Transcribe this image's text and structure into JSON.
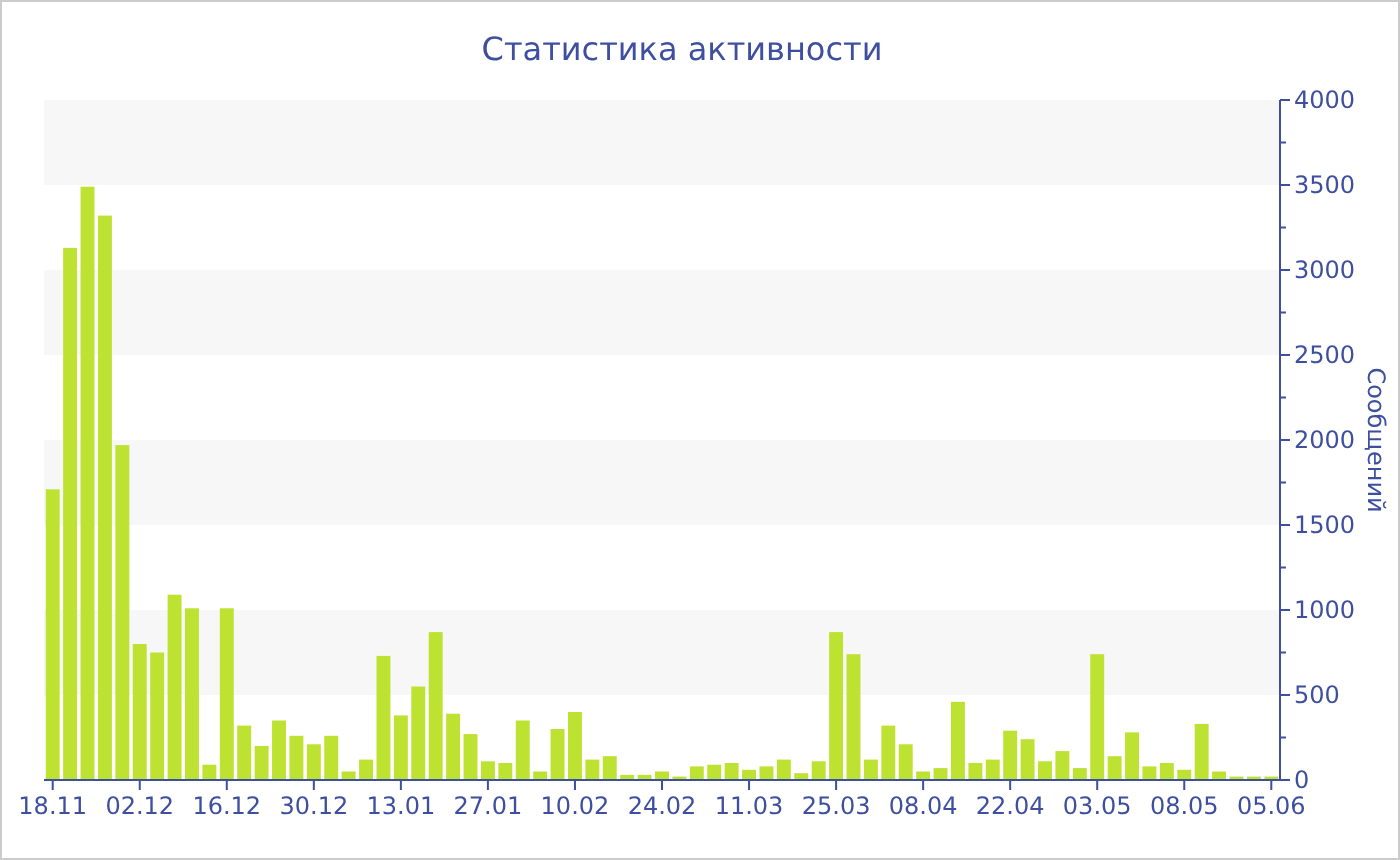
{
  "chart_data": {
    "type": "bar",
    "title": "Статистика активности",
    "ylabel": "Сообщений",
    "categories": [
      "18.11",
      null,
      null,
      null,
      null,
      "02.12",
      null,
      null,
      null,
      null,
      "16.12",
      null,
      null,
      null,
      null,
      "30.12",
      null,
      null,
      null,
      null,
      "13.01",
      null,
      null,
      null,
      null,
      "27.01",
      null,
      null,
      null,
      null,
      "10.02",
      null,
      null,
      null,
      null,
      "24.02",
      null,
      null,
      null,
      null,
      "11.03",
      null,
      null,
      null,
      null,
      "25.03",
      null,
      null,
      null,
      null,
      "08.04",
      null,
      null,
      null,
      null,
      "22.04",
      null,
      null,
      null,
      null,
      "03.05",
      null,
      null,
      null,
      null,
      "08.05",
      null,
      null,
      null,
      null,
      "05.06"
    ],
    "values": [
      1710,
      3130,
      3490,
      3320,
      1970,
      800,
      750,
      1090,
      1010,
      90,
      1010,
      320,
      200,
      350,
      260,
      210,
      260,
      50,
      120,
      730,
      380,
      550,
      870,
      390,
      270,
      110,
      100,
      350,
      50,
      300,
      400,
      120,
      140,
      30,
      30,
      50,
      20,
      80,
      90,
      100,
      60,
      80,
      120,
      40,
      110,
      870,
      740,
      120,
      320,
      210,
      50,
      70,
      460,
      100,
      120,
      290,
      240,
      110,
      170,
      70,
      740,
      140,
      280,
      80,
      100,
      60,
      330,
      50,
      20,
      20,
      20
    ],
    "color": "#bde232",
    "ylim": [
      0,
      4000
    ],
    "yticks": [
      0,
      500,
      1000,
      1500,
      2000,
      2500,
      3000,
      3500,
      4000
    ]
  }
}
